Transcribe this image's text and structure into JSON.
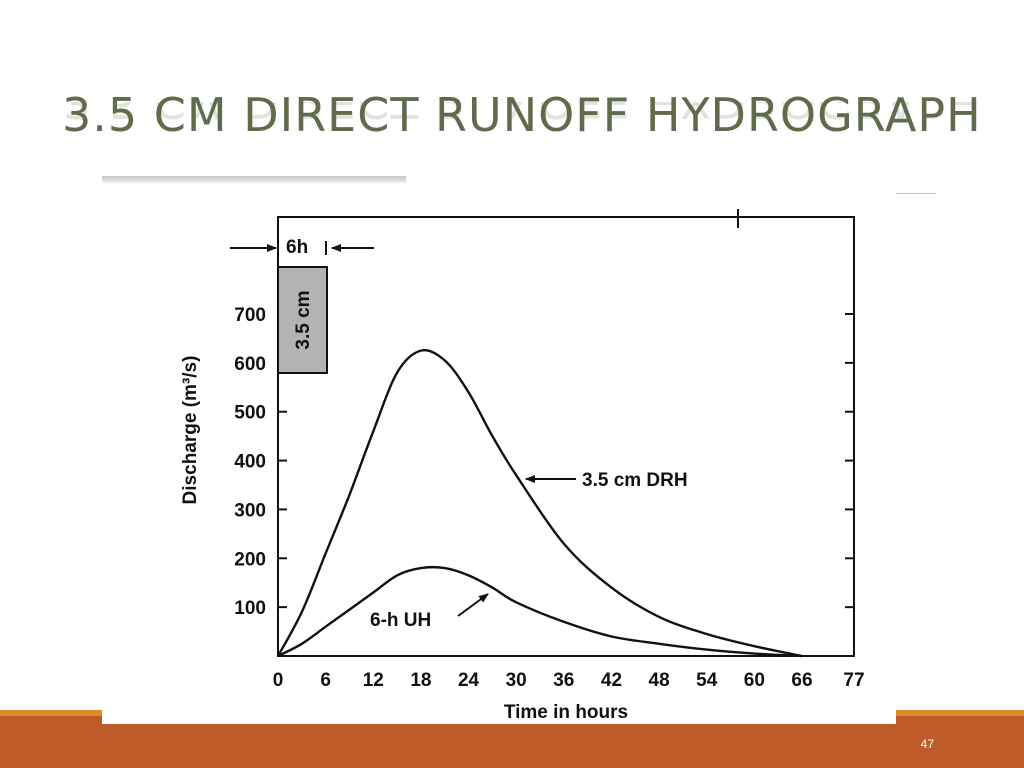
{
  "slide": {
    "title": "3.5 CM DIRECT RUNOFF HYDROGRAPH",
    "page_number": "47"
  },
  "colors": {
    "title": "#5f6b4a",
    "footer": "#bf5a2a",
    "footer_accent": "#d98a2b",
    "ink": "#111111",
    "rain_block": "#b3b3b3"
  },
  "chart_data": {
    "type": "line",
    "title": "",
    "xlabel": "Time in hours",
    "ylabel": "Discharge (m³/s)",
    "xlim": [
      0,
      77
    ],
    "ylim": [
      0,
      700
    ],
    "x_ticks": [
      0,
      6,
      12,
      18,
      24,
      30,
      36,
      42,
      48,
      54,
      60,
      66,
      77
    ],
    "x_tick_labels": [
      "0",
      "6",
      "12",
      "18",
      "24",
      "30",
      "36",
      "42",
      "48",
      "54",
      "60",
      "66",
      "77"
    ],
    "y_ticks": [
      100,
      200,
      300,
      400,
      500,
      600,
      700
    ],
    "y_tick_labels": [
      "100",
      "200",
      "300",
      "400",
      "500",
      "600",
      "700"
    ],
    "grid": false,
    "series": [
      {
        "name": "3.5 cm DRH",
        "x": [
          0,
          3,
          6,
          9,
          12,
          15,
          18,
          21,
          24,
          27,
          30,
          36,
          42,
          48,
          54,
          60,
          66
        ],
        "y": [
          0,
          90,
          210,
          330,
          460,
          580,
          625,
          605,
          540,
          450,
          370,
          230,
          140,
          80,
          45,
          20,
          0
        ]
      },
      {
        "name": "6-h UH",
        "x": [
          0,
          3,
          6,
          9,
          12,
          15,
          18,
          21,
          24,
          27,
          30,
          36,
          42,
          48,
          54,
          60,
          66
        ],
        "y": [
          0,
          25,
          60,
          95,
          130,
          165,
          180,
          180,
          165,
          140,
          110,
          70,
          40,
          25,
          13,
          5,
          0
        ]
      }
    ],
    "annotations": [
      {
        "text": "3.5 cm DRH",
        "x": 30,
        "y": 370
      },
      {
        "text": "6-h UH",
        "x": 26,
        "y": 135
      }
    ],
    "rainfall": {
      "duration_label": "6h",
      "depth_label": "3.5 cm",
      "duration_hours": 6
    }
  }
}
